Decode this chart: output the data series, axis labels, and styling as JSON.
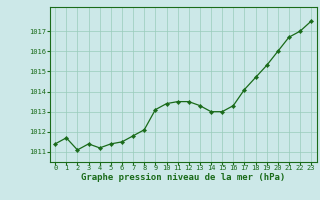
{
  "x": [
    0,
    1,
    2,
    3,
    4,
    5,
    6,
    7,
    8,
    9,
    10,
    11,
    12,
    13,
    14,
    15,
    16,
    17,
    18,
    19,
    20,
    21,
    22,
    23
  ],
  "y": [
    1011.4,
    1011.7,
    1011.1,
    1011.4,
    1011.2,
    1011.4,
    1011.5,
    1011.8,
    1012.1,
    1013.1,
    1013.4,
    1013.5,
    1013.5,
    1013.3,
    1013.0,
    1013.0,
    1013.3,
    1014.1,
    1014.7,
    1015.3,
    1016.0,
    1016.7,
    1017.0,
    1017.5
  ],
  "line_color": "#1a6b1a",
  "marker": "D",
  "marker_size": 2.2,
  "bg_color": "#cce8e8",
  "grid_color": "#99ccbb",
  "xlabel": "Graphe pression niveau de la mer (hPa)",
  "xlabel_color": "#1a6b1a",
  "tick_color": "#1a6b1a",
  "ylim": [
    1010.5,
    1018.2
  ],
  "yticks": [
    1011,
    1012,
    1013,
    1014,
    1015,
    1016,
    1017
  ],
  "xlim": [
    -0.5,
    23.5
  ],
  "tick_fontsize": 5.0,
  "xlabel_fontsize": 6.5
}
